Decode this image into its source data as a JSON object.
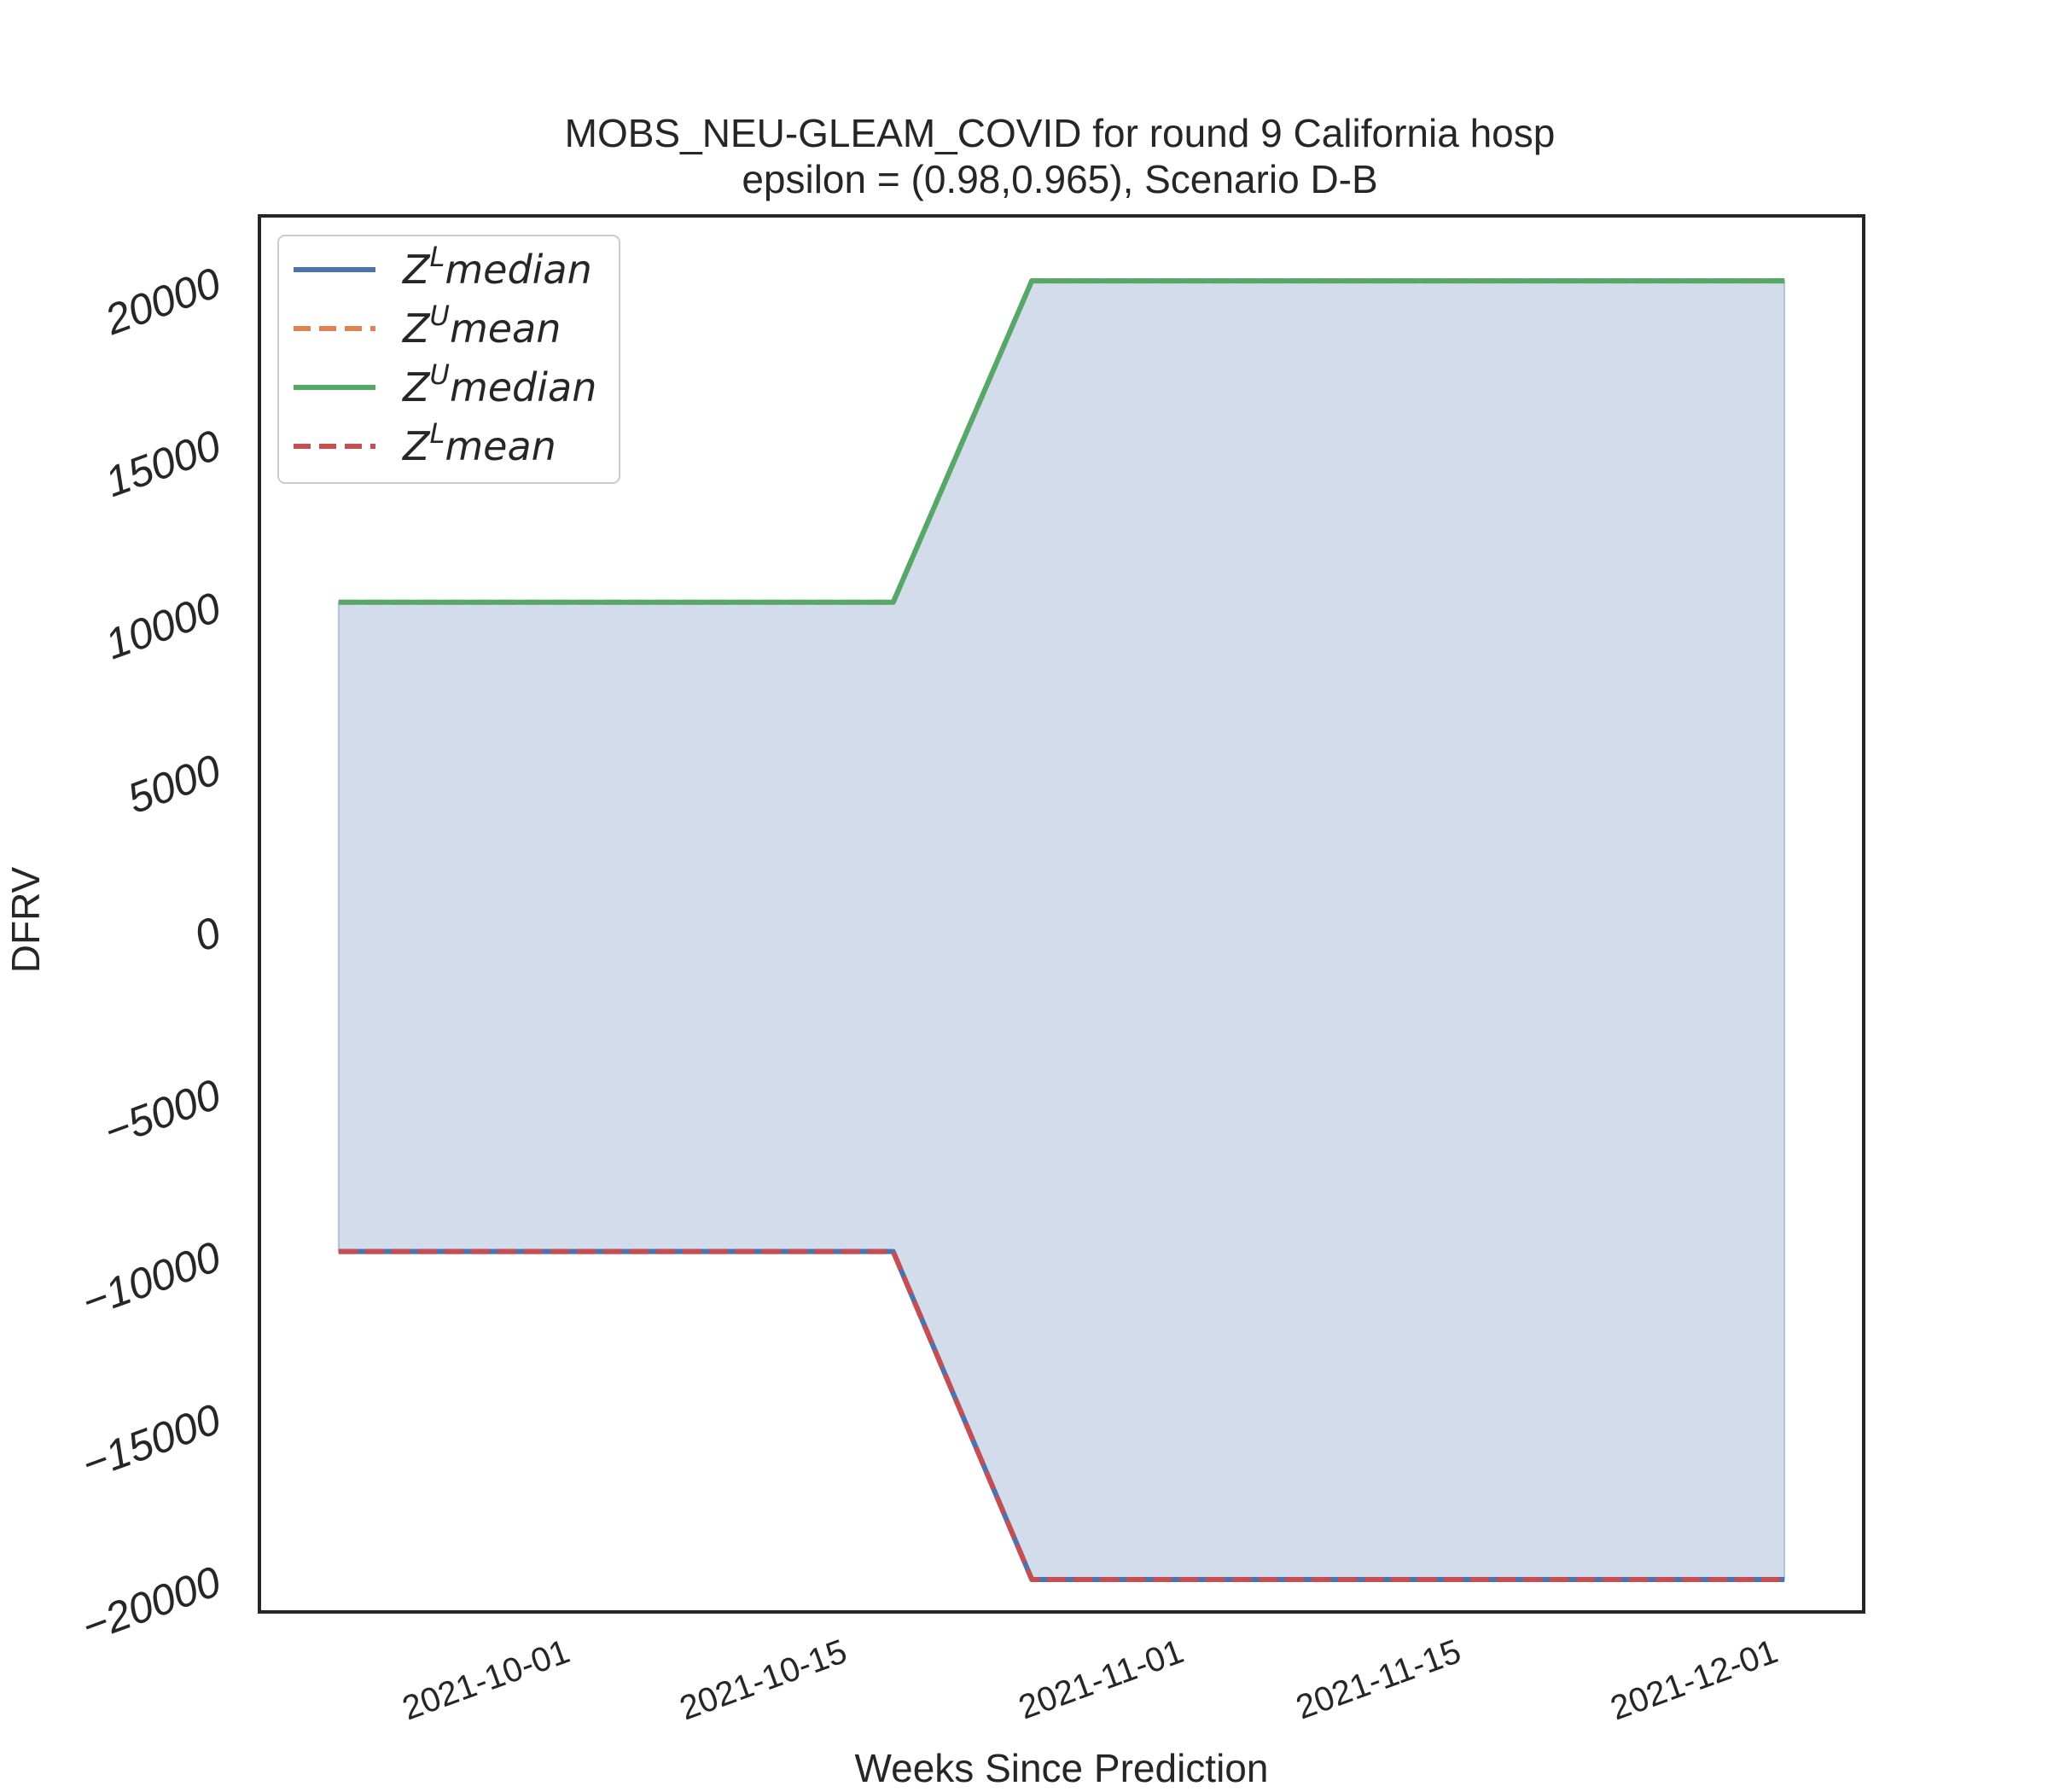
{
  "chart_data": {
    "type": "line",
    "title": "MOBS_NEU-GLEAM_COVID for round 9 California  hosp",
    "subtitle": "epsilon = (0.98,0.965), Scenario D-B",
    "xlabel": "Weeks Since Prediction",
    "ylabel": "DFRV",
    "x": [
      "2021-09-20",
      "2021-10-18",
      "2021-10-25",
      "2021-12-02"
    ],
    "x_ticks": [
      "2021-10-01",
      "2021-10-15",
      "2021-11-01",
      "2021-11-15",
      "2021-12-01"
    ],
    "xlim": [
      "2021-09-16",
      "2021-12-06"
    ],
    "ylim": [
      -21000,
      22000
    ],
    "y_ticks": [
      -20000,
      -15000,
      -10000,
      -5000,
      0,
      5000,
      10000,
      15000,
      20000
    ],
    "y_tick_labels": [
      "−20000",
      "−15000",
      "−10000",
      "−5000",
      "0",
      "5000",
      "10000",
      "15000",
      "20000"
    ],
    "series": [
      {
        "name": "Z^L median",
        "base": "Z",
        "sup": "L",
        "stat": "median",
        "color": "#4c72b0",
        "dash": false,
        "values": [
          -9900,
          -9900,
          -20000,
          -20000
        ]
      },
      {
        "name": "Z^U mean",
        "base": "Z",
        "sup": "U",
        "stat": "mean",
        "color": "#dd8452",
        "dash": true,
        "values": [
          10100,
          10100,
          20000,
          20000
        ]
      },
      {
        "name": "Z^U median",
        "base": "Z",
        "sup": "U",
        "stat": "median",
        "color": "#55a868",
        "dash": false,
        "values": [
          10100,
          10100,
          20000,
          20000
        ]
      },
      {
        "name": "Z^L mean",
        "base": "Z",
        "sup": "L",
        "stat": "mean",
        "color": "#c44e52",
        "dash": true,
        "values": [
          -9900,
          -9900,
          -20000,
          -20000
        ]
      }
    ],
    "fill_between": {
      "lower": "Z^L median",
      "upper": "Z^U median",
      "color": "#4c72b0",
      "opacity": 0.25
    },
    "legend_position": "upper-left",
    "grid": false
  }
}
